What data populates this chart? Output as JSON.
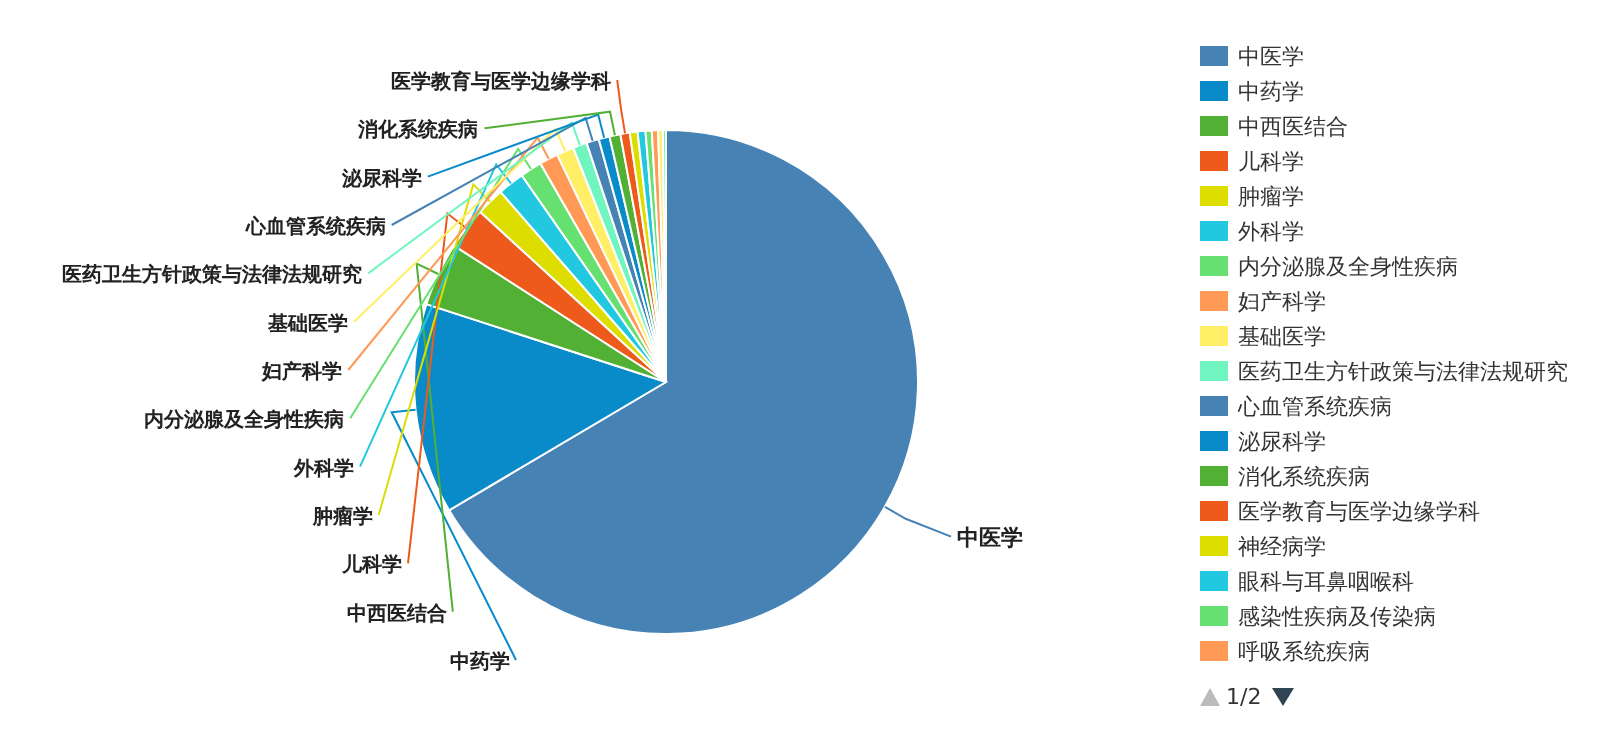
{
  "chart_data": {
    "type": "pie",
    "legend": "right",
    "categories": [
      "中医学",
      "中药学",
      "中西医结合",
      "儿科学",
      "肿瘤学",
      "外科学",
      "内分泌腺及全身性疾病",
      "妇产科学",
      "基础医学",
      "医药卫生方针政策与法律法规研究",
      "心血管系统疾病",
      "泌尿科学",
      "消化系统疾病",
      "医学教育与医学边缘学科",
      "神经病学",
      "眼科与耳鼻咽喉科",
      "感染性疾病及传染病",
      "呼吸系统疾病",
      null,
      null
    ],
    "values": [
      66.5,
      13.5,
      4.1,
      2.7,
      1.8,
      1.7,
      1.4,
      1.2,
      1.1,
      0.9,
      0.8,
      0.7,
      0.7,
      0.6,
      0.5,
      0.5,
      0.4,
      0.4,
      0.3,
      0.2
    ],
    "colors": [
      "#4682b4",
      "#0a8bc9",
      "#52b035",
      "#ee5a1c",
      "#dddd00",
      "#22c8e0",
      "#66e070",
      "#ff9955",
      "#ffee66",
      "#70f5c0",
      "#4682b4",
      "#0a8bc9",
      "#52b035",
      "#ee5a1c",
      "#dddd00",
      "#22c8e0",
      "#66e070",
      "#ff9955",
      "#ffee66",
      "#70f5c0"
    ],
    "value_labels": [
      "中医学",
      "中药学",
      "中西医结合",
      "儿科学",
      "肿瘤学",
      "外科学",
      "内分泌腺及全身性疾病",
      "妇产科学",
      "基础医学",
      "医药卫生方针政策与法律法规研究",
      "心血管系统疾病",
      "泌尿科学",
      "消化系统疾病",
      "医学教育与医学边缘学科",
      null,
      null,
      null,
      null,
      null,
      null
    ],
    "annotations": [
      "1/2"
    ]
  }
}
